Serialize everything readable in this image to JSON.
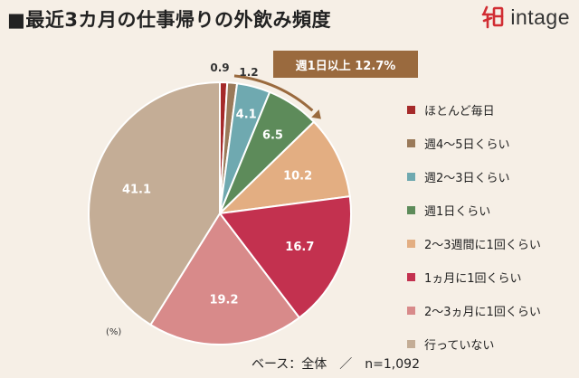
{
  "title": "■最近3カ月の仕事帰りの外飲み頻度",
  "logo": {
    "text": "intage",
    "mark_color": "#d12d33"
  },
  "callout": {
    "text": "週1日以上 12.7%",
    "color": "#9a6a3e"
  },
  "unit_note": "(%)",
  "base_note": "ベース：全体　／　n=1,092",
  "chart_data": {
    "type": "pie",
    "start_angle_deg": 0,
    "direction": "clockwise",
    "slices": [
      {
        "label": "ほとんど毎日",
        "value": 0.9,
        "value_label": "0.9",
        "color": "#a52a2a"
      },
      {
        "label": "週4～5日くらい",
        "value": 1.2,
        "value_label": "1.2",
        "color": "#9a7a5a"
      },
      {
        "label": "週2～3日くらい",
        "value": 4.1,
        "value_label": "4.1",
        "color": "#6fa9b0"
      },
      {
        "label": "週1日くらい",
        "value": 6.5,
        "value_label": "6.5",
        "color": "#5d8b5a"
      },
      {
        "label": "2～3週間に1回くらい",
        "value": 10.2,
        "value_label": "10.2",
        "color": "#e3ae82"
      },
      {
        "label": "1ヵ月に1回くらい",
        "value": 16.7,
        "value_label": "16.7",
        "color": "#c3314f"
      },
      {
        "label": "2～3ヵ月に1回くらい",
        "value": 19.2,
        "value_label": "19.2",
        "color": "#d88a8a"
      },
      {
        "label": "行っていない",
        "value": 41.1,
        "value_label": "41.1",
        "color": "#c4ad96"
      }
    ]
  }
}
